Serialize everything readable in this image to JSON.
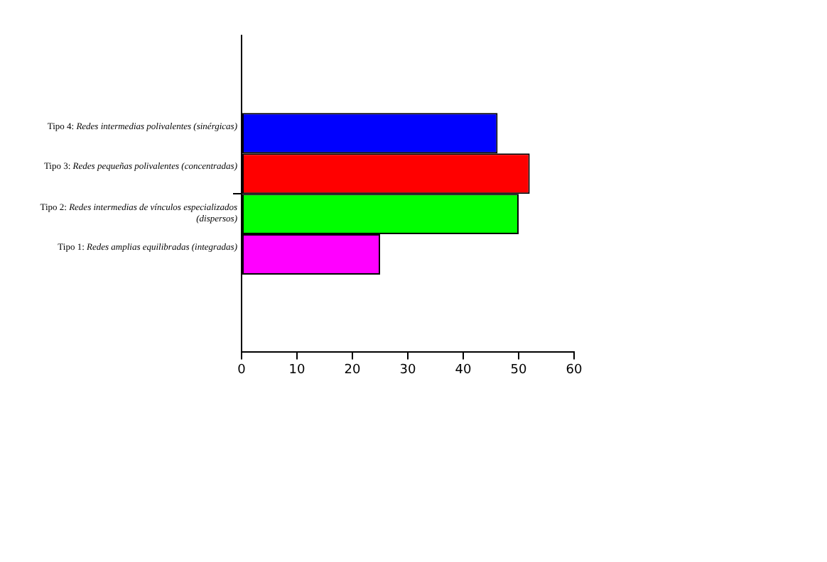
{
  "chart_data": {
    "type": "bar",
    "orientation": "horizontal",
    "categories": [
      null
    ],
    "series": [
      {
        "name": "Tipo 4: Redes intermedias polivalentes (sinérgicas)",
        "color": "#0000ff",
        "values": [
          46.2
        ]
      },
      {
        "name": "Tipo 3: Redes pequeñas polivalentes (concentradas)",
        "color": "#ff0000",
        "values": [
          52
        ]
      },
      {
        "name": "Tipo 2: Redes intermedias de vínculos especializados (dispersos)",
        "color": "#00ff00",
        "values": [
          50
        ]
      },
      {
        "name": "Tipo 1: Redes amplias equilibradas (integradas)",
        "color": "#ff00ff",
        "values": [
          25
        ]
      }
    ],
    "xlim": [
      0,
      60
    ],
    "xticks": [
      0,
      10,
      20,
      30,
      40,
      50,
      60
    ],
    "grid": false,
    "legend": "left"
  }
}
